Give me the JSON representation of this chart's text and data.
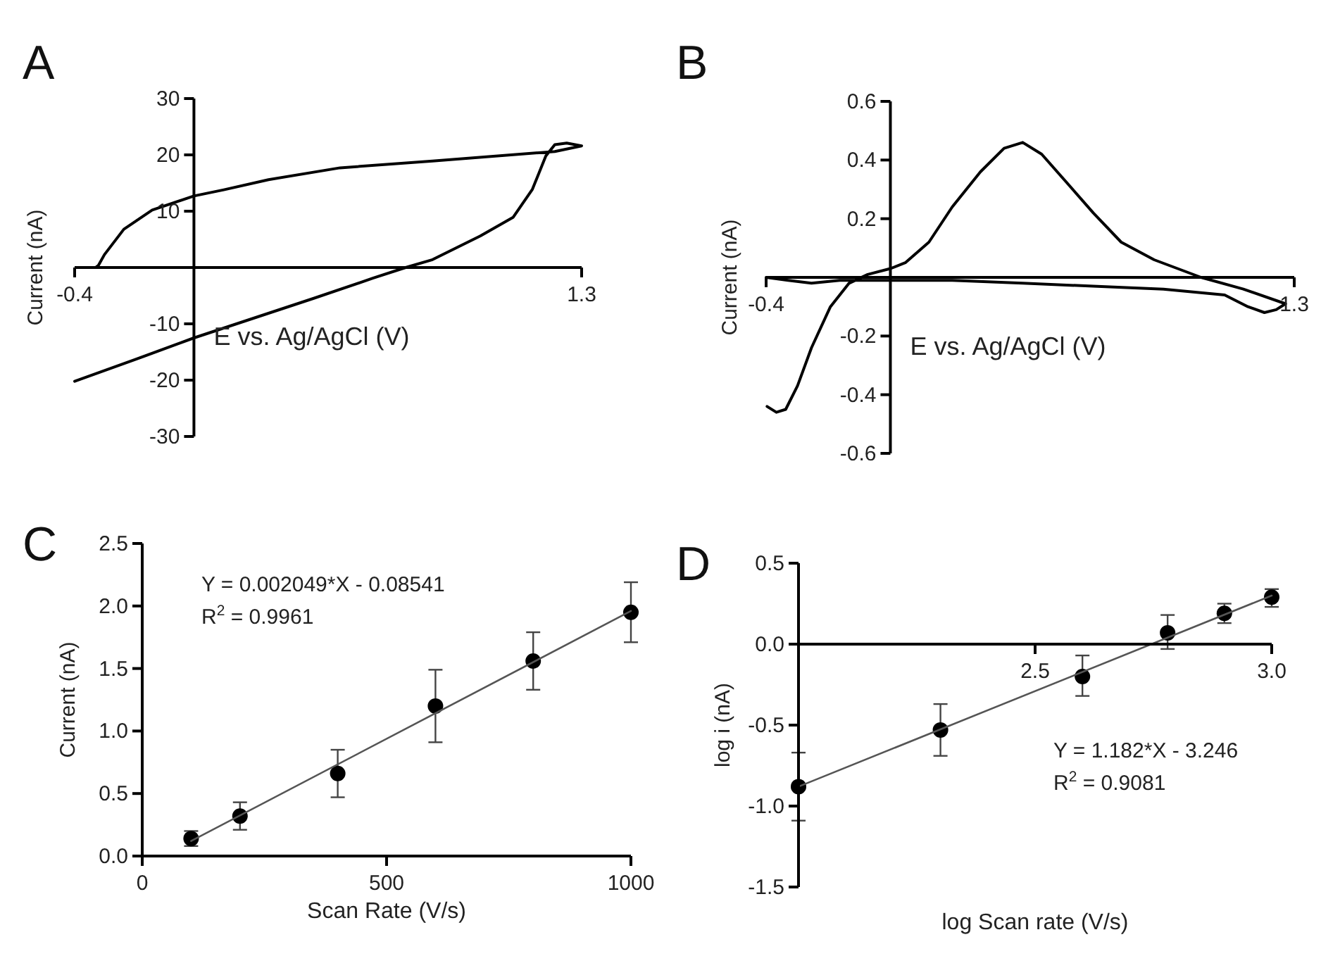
{
  "chart_data": [
    {
      "type": "line",
      "title": "A",
      "xlabel": "E vs. Ag/AgCl (V)",
      "ylabel": "Current (nA)",
      "xlim": [
        -0.4,
        1.3
      ],
      "xticks": [
        -0.4,
        1.3
      ],
      "ylim": [
        -30,
        30
      ],
      "yticks": [
        -30,
        -20,
        -10,
        10,
        20,
        30
      ],
      "series": [
        {
          "color": "#000000",
          "x": [
            -0.4,
            -0.2,
            0,
            0.2,
            0.4,
            0.6,
            0.71,
            0.8,
            0.96,
            1.07,
            1.135,
            1.18,
            1.21,
            1.25,
            1.3,
            1.21,
            0.8,
            0.49,
            0.25,
            0.1,
            0,
            -0.14,
            -0.235,
            -0.3,
            -0.32,
            -0.33
          ],
          "values": [
            -20.2,
            -16.4,
            -12.5,
            -9.0,
            -5.5,
            -1.9,
            0,
            1.4,
            5.6,
            8.9,
            13.9,
            19.8,
            21.8,
            22.1,
            21.6,
            20.6,
            18.9,
            17.7,
            15.6,
            13.8,
            12.7,
            10.2,
            6.8,
            2.3,
            0.4,
            0
          ]
        }
      ]
    },
    {
      "type": "line",
      "title": "B",
      "xlabel": "E vs. Ag/AgCl (V)",
      "ylabel": "Current (nA)",
      "xlim": [
        -0.4,
        1.3
      ],
      "xticks": [
        -0.4,
        1.3
      ],
      "ylim": [
        -0.6,
        0.6
      ],
      "yticks": [
        -0.6,
        -0.4,
        -0.2,
        0.2,
        0.4,
        0.6
      ],
      "series": [
        {
          "color": "#000000",
          "x": [
            -0.4,
            -0.329,
            -0.254,
            -0.163,
            -0.073,
            0,
            0.199,
            0.426,
            0.653,
            0.879,
            1.076,
            1.151,
            1.204,
            1.242,
            1.272,
            1.136,
            1.0,
            0.849,
            0.743,
            0.653,
            0.562,
            0.487,
            0.426,
            0.366,
            0.29,
            0.199,
            0.124,
            0.048,
            0,
            -0.073,
            -0.133,
            -0.193,
            -0.254,
            -0.299,
            -0.337,
            -0.367,
            -0.397
          ],
          "values": [
            0,
            -0.01,
            -0.02,
            -0.01,
            -0.01,
            -0.01,
            -0.01,
            -0.02,
            -0.03,
            -0.04,
            -0.06,
            -0.1,
            -0.12,
            -0.11,
            -0.09,
            -0.04,
            0,
            0.06,
            0.12,
            0.22,
            0.33,
            0.42,
            0.46,
            0.44,
            0.36,
            0.24,
            0.12,
            0.05,
            0.03,
            0.01,
            -0.02,
            -0.1,
            -0.24,
            -0.37,
            -0.45,
            -0.46,
            -0.44
          ]
        }
      ]
    },
    {
      "type": "scatter",
      "title": "C",
      "xlabel": "Scan Rate (V/s)",
      "ylabel": "Current (nA)",
      "xlim": [
        0,
        1000
      ],
      "xticks": [
        0,
        500,
        1000
      ],
      "ylim": [
        0,
        2.5
      ],
      "yticks": [
        {
          "value": 0,
          "label": "0.0"
        },
        0.5,
        {
          "value": 1,
          "label": "1.0"
        },
        1.5,
        {
          "value": 2,
          "label": "2.0"
        },
        2.5
      ],
      "annotations": [
        "Y = 0.002049*X - 0.08541",
        "R$^{2}$ = 0.9961"
      ],
      "series": [
        {
          "type": "scatter",
          "color": "#000000",
          "marker": "circle",
          "x": [
            100,
            200,
            400,
            600,
            800,
            1000
          ],
          "values": [
            0.14,
            0.32,
            0.66,
            1.2,
            1.56,
            1.95
          ],
          "errors": [
            0.06,
            0.11,
            0.19,
            0.29,
            0.23,
            0.24
          ]
        },
        {
          "type": "line",
          "color": "#555555",
          "x": [
            100,
            1000
          ],
          "values": [
            0.12,
            1.96
          ]
        }
      ]
    },
    {
      "type": "scatter",
      "title": "D",
      "xlabel": "log Scan rate (V/s)",
      "ylabel": "log i (nA)",
      "xlim": [
        2.0,
        3.0
      ],
      "xticks": [
        2.5,
        {
          "value": 3,
          "label": "3.0"
        }
      ],
      "ylim": [
        -1.5,
        0.5
      ],
      "yticks": [
        -1.5,
        {
          "value": -1,
          "label": "-1.0"
        },
        -0.5,
        {
          "value": 0,
          "label": "0.0"
        },
        0.5
      ],
      "annotations": [
        "Y = 1.182*X - 3.246",
        "R$^{2}$ = 0.9081"
      ],
      "series": [
        {
          "type": "scatter",
          "color": "#000000",
          "marker": "circle",
          "x": [
            2.0,
            2.3,
            2.6,
            2.78,
            2.9,
            3.0
          ],
          "values": [
            -0.88,
            -0.53,
            -0.2,
            0.07,
            0.19,
            0.29
          ],
          "errors": [
            [
              -1.09,
              -0.67
            ],
            [
              -0.69,
              -0.37
            ],
            [
              -0.32,
              -0.07
            ],
            [
              -0.03,
              0.18
            ],
            [
              0.13,
              0.25
            ],
            [
              0.23,
              0.34
            ]
          ]
        },
        {
          "type": "line",
          "color": "#555555",
          "x": [
            2.0,
            3.0
          ],
          "values": [
            -0.88,
            0.3
          ]
        }
      ]
    }
  ]
}
